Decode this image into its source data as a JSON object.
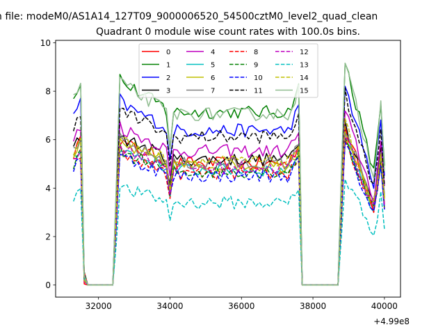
{
  "chart_data": {
    "type": "line",
    "suptitle": "n file: modeM0/AS1A14_127T09_9000006520_54500cztM0_level2_quad_clean",
    "title": "Quadrant 0 module wise count rates with 100.0s bins.",
    "xlabel": "",
    "ylabel": "",
    "x_offset_label": "+4.99e8",
    "xlim": [
      30800,
      40450
    ],
    "ylim": [
      -0.5,
      10.1
    ],
    "x_ticks": [
      32000,
      34000,
      36000,
      38000,
      40000
    ],
    "x_tick_labels": [
      "32000",
      "34000",
      "36000",
      "38000",
      "40000"
    ],
    "y_ticks": [
      0,
      2,
      4,
      6,
      8,
      10
    ],
    "y_tick_labels": [
      "0",
      "2",
      "4",
      "6",
      "8",
      "10"
    ],
    "legend_position": "upper center",
    "series": [
      {
        "name": "0",
        "color": "#ff0000",
        "dash": "solid",
        "level": 5.9
      },
      {
        "name": "1",
        "color": "#008000",
        "dash": "solid",
        "level": 8.4
      },
      {
        "name": "2",
        "color": "#0000ff",
        "dash": "solid",
        "level": 7.5
      },
      {
        "name": "3",
        "color": "#000000",
        "dash": "solid",
        "level": 6.1
      },
      {
        "name": "4",
        "color": "#bf00bf",
        "dash": "solid",
        "level": 6.5
      },
      {
        "name": "5",
        "color": "#00bfbf",
        "dash": "solid",
        "level": 5.6
      },
      {
        "name": "6",
        "color": "#bfbf00",
        "dash": "solid",
        "level": 5.8
      },
      {
        "name": "7",
        "color": "#808080",
        "dash": "solid",
        "level": 5.9
      },
      {
        "name": "8",
        "color": "#ff0000",
        "dash": "dashed",
        "level": 5.4
      },
      {
        "name": "9",
        "color": "#008000",
        "dash": "dashed",
        "level": 5.5
      },
      {
        "name": "10",
        "color": "#0000ff",
        "dash": "dashed",
        "level": 5.3
      },
      {
        "name": "11",
        "color": "#000000",
        "dash": "dashed",
        "level": 7.2
      },
      {
        "name": "12",
        "color": "#bf00bf",
        "dash": "dashed",
        "level": 5.7
      },
      {
        "name": "13",
        "color": "#00bfbf",
        "dash": "dashed",
        "level": 4.0
      },
      {
        "name": "14",
        "color": "#bfbf00",
        "dash": "dashed",
        "level": 6.0
      },
      {
        "name": "15",
        "color": "#8fbc8f",
        "dash": "solid",
        "level": 8.3
      }
    ]
  }
}
